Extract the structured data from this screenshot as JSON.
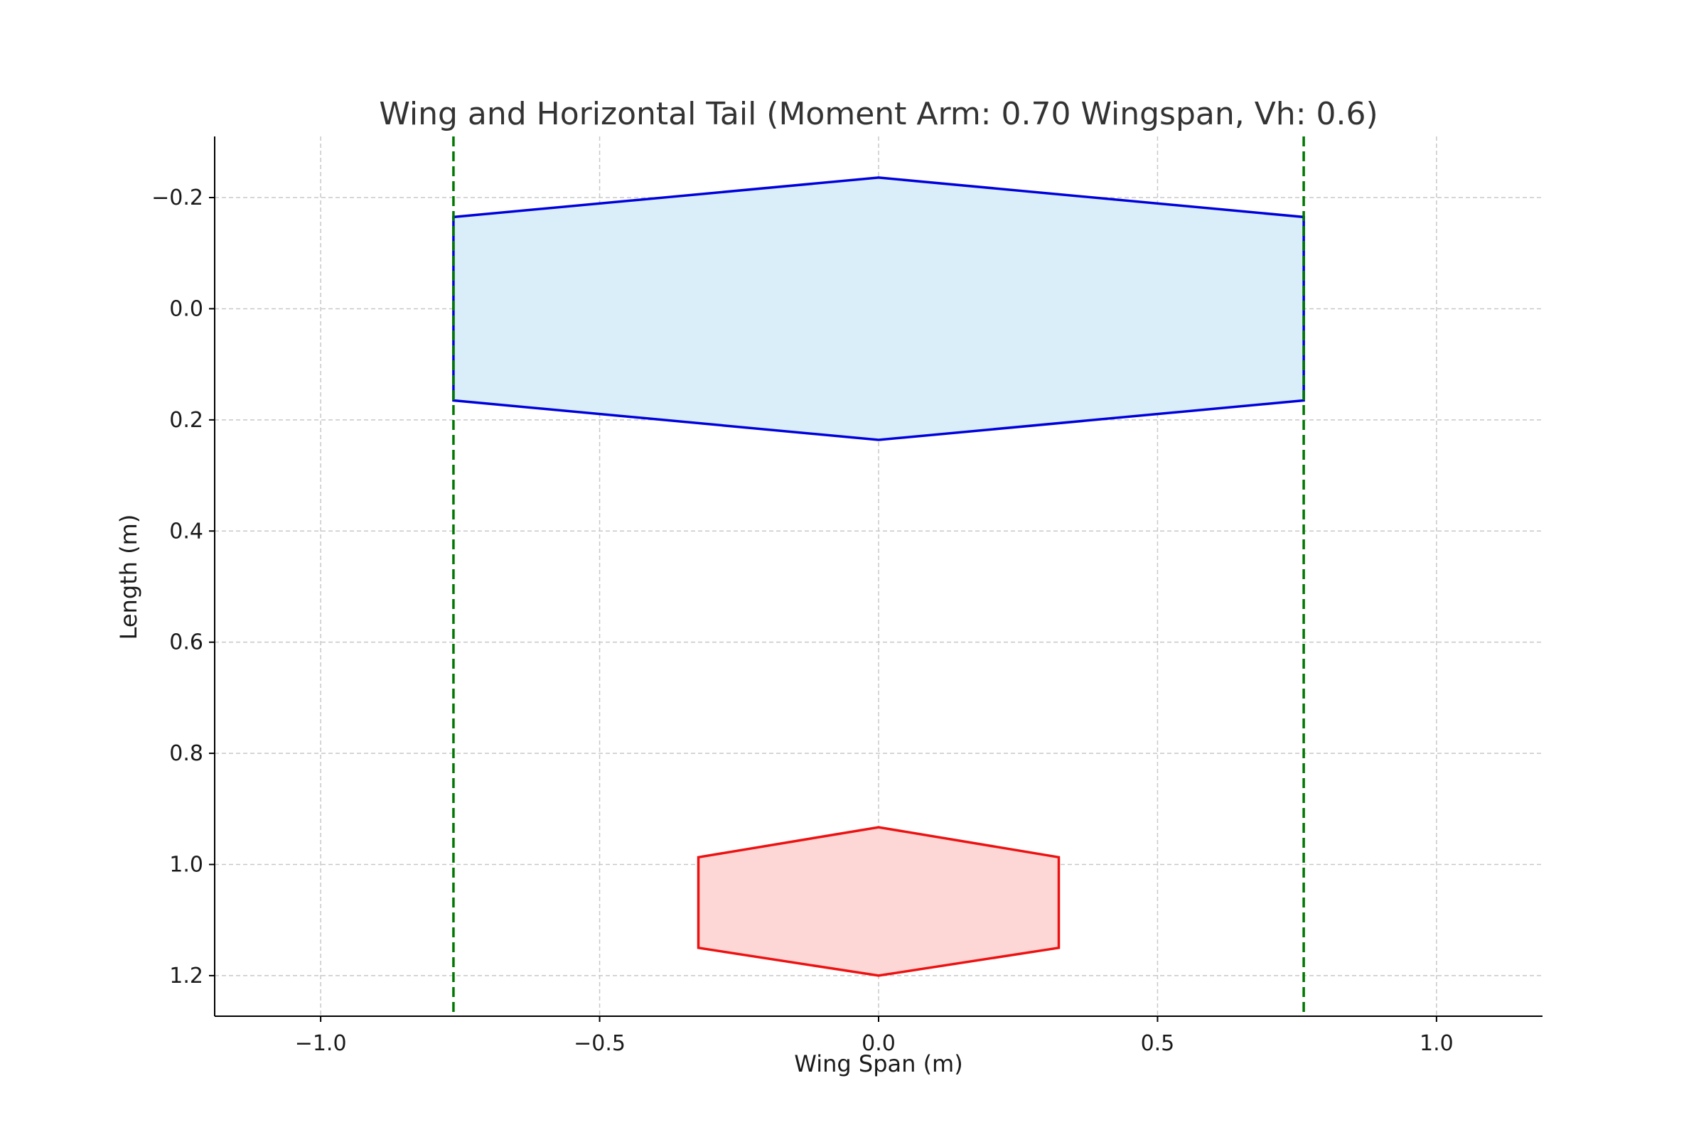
{
  "chart_data": {
    "type": "area",
    "title": "Wing and Horizontal Tail (Moment Arm: 0.70 Wingspan, Vh: 0.6)",
    "xlabel": "Wing Span (m)",
    "ylabel": "Length (m)",
    "xlim": [
      -1.19,
      1.19
    ],
    "ylim": [
      1.273,
      -0.31
    ],
    "y_inverted": true,
    "grid": true,
    "x_ticks": [
      -1.0,
      -0.5,
      0.0,
      0.5,
      1.0
    ],
    "x_tick_labels": [
      "−1.0",
      "−0.5",
      "0.0",
      "0.5",
      "1.0"
    ],
    "y_ticks": [
      -0.2,
      0.0,
      0.2,
      0.4,
      0.6,
      0.8,
      1.0,
      1.2
    ],
    "y_tick_labels": [
      "−0.2",
      "0.0",
      "0.2",
      "0.4",
      "0.6",
      "0.8",
      "1.0",
      "1.2"
    ],
    "series": [
      {
        "kind": "polygon",
        "edge_color": "#0000dd",
        "fill_color": "#d9eef8",
        "points": [
          [
            -0.762,
            -0.165
          ],
          [
            0,
            -0.236
          ],
          [
            0.762,
            -0.165
          ],
          [
            0.762,
            0.165
          ],
          [
            0,
            0.236
          ],
          [
            -0.762,
            0.165
          ]
        ]
      },
      {
        "kind": "polygon",
        "edge_color": "#ee1111",
        "fill_color": "#fdd7d6",
        "points": [
          [
            -0.323,
            0.987
          ],
          [
            0,
            0.933
          ],
          [
            0.323,
            0.987
          ],
          [
            0.323,
            1.15
          ],
          [
            0,
            1.2
          ],
          [
            -0.323,
            1.15
          ]
        ]
      },
      {
        "kind": "vline",
        "style": "dashed",
        "color": "#007700",
        "x": -0.762
      },
      {
        "kind": "vline",
        "style": "dashed",
        "color": "#007700",
        "x": 0.762
      }
    ]
  }
}
